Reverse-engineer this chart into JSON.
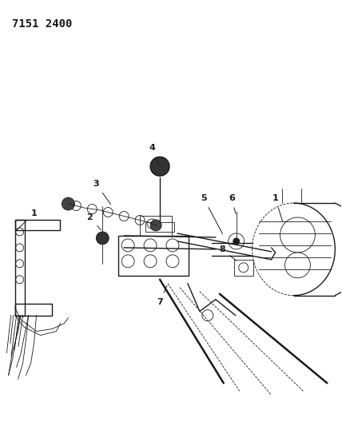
{
  "title": "7151 2400",
  "title_fontsize": 10,
  "title_fontweight": "bold",
  "title_fontfamily": "monospace",
  "background_color": "#ffffff",
  "line_color": "#1a1a1a",
  "label_color": "#1a1a1a",
  "fig_width": 4.28,
  "fig_height": 5.33,
  "dpi": 100,
  "lw_thin": 0.6,
  "lw_med": 1.0,
  "lw_thick": 1.8
}
